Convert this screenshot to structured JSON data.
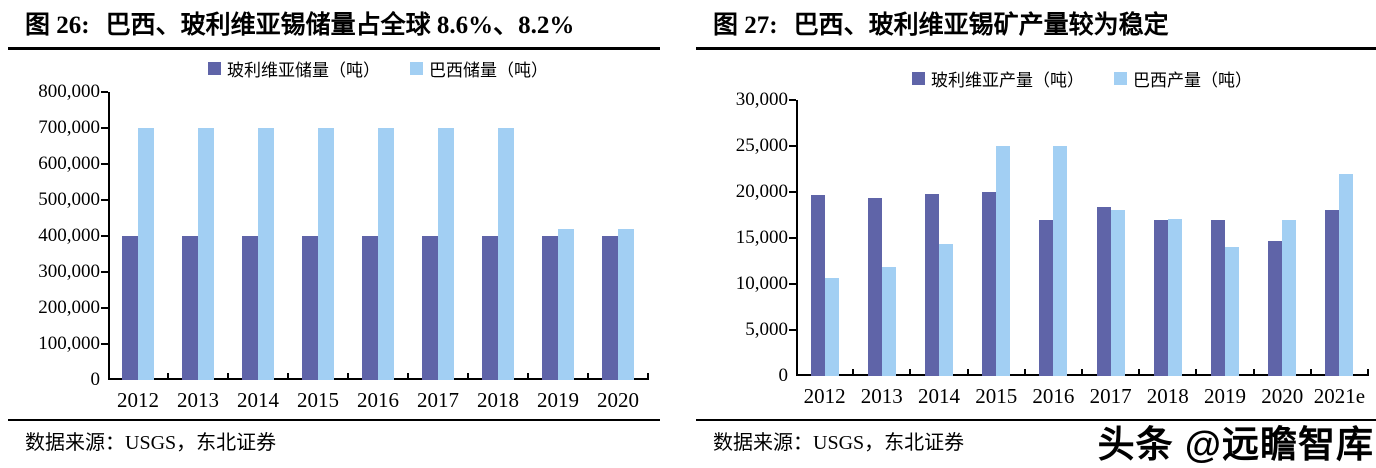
{
  "watermark": "头条 @远瞻智库",
  "figures": [
    {
      "label": "图 26:",
      "title": "巴西、玻利维亚锡储量占全球 8.6%、8.2%",
      "source": "数据来源：USGS，东北证券",
      "chart_data": {
        "type": "bar",
        "categories": [
          "2012",
          "2013",
          "2014",
          "2015",
          "2016",
          "2017",
          "2018",
          "2019",
          "2020"
        ],
        "series": [
          {
            "name": "玻利维亚储量（吨）",
            "color": "#5F64A8",
            "values": [
              400000,
              400000,
              400000,
              400000,
              400000,
              400000,
              400000,
              400000,
              400000
            ]
          },
          {
            "name": "巴西储量（吨）",
            "color": "#A2CFF3",
            "values": [
              700000,
              700000,
              700000,
              700000,
              700000,
              700000,
              700000,
              420000,
              420000
            ]
          }
        ],
        "ylim": [
          0,
          800000
        ],
        "ytick_step": 100000,
        "grid": false,
        "legend_position": "top"
      }
    },
    {
      "label": "图 27:",
      "title": "巴西、玻利维亚锡矿产量较为稳定",
      "source": "数据来源：USGS，东北证券",
      "chart_data": {
        "type": "bar",
        "categories": [
          "2012",
          "2013",
          "2014",
          "2015",
          "2016",
          "2017",
          "2018",
          "2019",
          "2020",
          "2021e"
        ],
        "series": [
          {
            "name": "玻利维亚产量（吨）",
            "color": "#5F64A8",
            "values": [
              19700,
              19300,
              19800,
              20000,
              17000,
              18400,
              17000,
              17000,
              14700,
              18000
            ]
          },
          {
            "name": "巴西产量（吨）",
            "color": "#A2CFF3",
            "values": [
              10700,
              11900,
              14400,
              25000,
              25000,
              18000,
              17100,
              14000,
              17000,
              22000
            ]
          }
        ],
        "ylim": [
          0,
          30000
        ],
        "ytick_step": 5000,
        "grid": false,
        "legend_position": "top"
      }
    }
  ]
}
